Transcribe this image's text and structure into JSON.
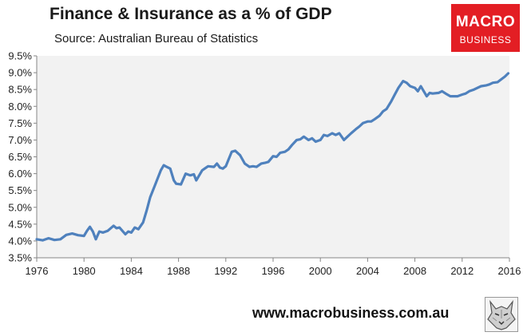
{
  "title": "Finance & Insurance as a % of GDP",
  "subtitle": "Source: Australian Bureau of Statistics",
  "logo": {
    "line1": "MACRO",
    "line2": "BUSINESS",
    "color": "#e31e24"
  },
  "footer": {
    "url": "www.macrobusiness.com.au",
    "icon": "wolf-head-icon"
  },
  "colors": {
    "line": "#4f81bd",
    "plot_bg": "#f2f2f2"
  },
  "chart_data": {
    "type": "line",
    "title": "Finance & Insurance as a % of GDP",
    "xlim": [
      1976,
      2016
    ],
    "ylim": [
      3.5,
      9.5
    ],
    "xticks": [
      1976,
      1980,
      1984,
      1988,
      1992,
      1996,
      2000,
      2004,
      2008,
      2012,
      2016
    ],
    "xtick_labels": [
      "1976",
      "1980",
      "1984",
      "1988",
      "1992",
      "1996",
      "2000",
      "2004",
      "2008",
      "2012",
      "2016"
    ],
    "yticks": [
      3.5,
      4.0,
      4.5,
      5.0,
      5.5,
      6.0,
      6.5,
      7.0,
      7.5,
      8.0,
      8.5,
      9.0,
      9.5
    ],
    "ytick_labels": [
      "3.5%",
      "4.0%",
      "4.5%",
      "5.0%",
      "5.5%",
      "6.0%",
      "6.5%",
      "7.0%",
      "7.5%",
      "8.0%",
      "8.5%",
      "9.0%",
      "9.5%"
    ],
    "grid": false,
    "legend": "none",
    "series": [
      {
        "x": [
          1976.0,
          1976.5,
          1977.0,
          1977.5,
          1978.0,
          1978.5,
          1979.0,
          1979.5,
          1980.0,
          1980.25,
          1980.5,
          1980.75,
          1981.0,
          1981.3,
          1981.6,
          1982.0,
          1982.5,
          1982.75,
          1983.0,
          1983.5,
          1983.75,
          1984.0,
          1984.3,
          1984.6,
          1985.0,
          1985.3,
          1985.6,
          1986.0,
          1986.5,
          1986.75,
          1987.0,
          1987.3,
          1987.6,
          1987.8,
          1988.2,
          1988.6,
          1989.0,
          1989.3,
          1989.5,
          1990.0,
          1990.5,
          1991.0,
          1991.25,
          1991.5,
          1991.75,
          1992.0,
          1992.5,
          1992.8,
          1993.2,
          1993.6,
          1994.0,
          1994.3,
          1994.6,
          1995.0,
          1995.3,
          1995.6,
          1996.0,
          1996.3,
          1996.6,
          1997.0,
          1997.3,
          1997.6,
          1998.0,
          1998.3,
          1998.6,
          1999.0,
          1999.3,
          1999.6,
          2000.0,
          2000.3,
          2000.6,
          2001.0,
          2001.3,
          2001.6,
          2002.0,
          2002.3,
          2002.6,
          2003.0,
          2003.3,
          2003.6,
          2004.0,
          2004.3,
          2004.6,
          2005.0,
          2005.3,
          2005.6,
          2006.0,
          2006.3,
          2006.6,
          2007.0,
          2007.3,
          2007.6,
          2008.0,
          2008.25,
          2008.5,
          2008.75,
          2009.0,
          2009.25,
          2009.5,
          2010.0,
          2010.3,
          2010.6,
          2011.0,
          2011.3,
          2011.6,
          2012.0,
          2012.3,
          2012.6,
          2013.0,
          2013.3,
          2013.6,
          2014.0,
          2014.3,
          2014.6,
          2015.0,
          2015.3,
          2015.6,
          2015.9
        ],
        "y": [
          4.05,
          4.02,
          4.08,
          4.03,
          4.05,
          4.18,
          4.22,
          4.17,
          4.15,
          4.3,
          4.42,
          4.28,
          4.05,
          4.28,
          4.25,
          4.3,
          4.45,
          4.38,
          4.4,
          4.2,
          4.28,
          4.25,
          4.4,
          4.35,
          4.55,
          4.9,
          5.3,
          5.65,
          6.1,
          6.25,
          6.2,
          6.15,
          5.8,
          5.7,
          5.68,
          6.0,
          5.95,
          5.98,
          5.8,
          6.1,
          6.22,
          6.2,
          6.3,
          6.18,
          6.15,
          6.22,
          6.65,
          6.68,
          6.55,
          6.3,
          6.2,
          6.22,
          6.2,
          6.3,
          6.32,
          6.35,
          6.52,
          6.5,
          6.62,
          6.65,
          6.72,
          6.85,
          7.0,
          7.02,
          7.1,
          7.0,
          7.05,
          6.95,
          7.0,
          7.15,
          7.12,
          7.2,
          7.15,
          7.2,
          7.0,
          7.1,
          7.2,
          7.32,
          7.4,
          7.5,
          7.55,
          7.55,
          7.62,
          7.72,
          7.85,
          7.92,
          8.15,
          8.35,
          8.55,
          8.75,
          8.7,
          8.6,
          8.55,
          8.45,
          8.6,
          8.45,
          8.3,
          8.4,
          8.38,
          8.4,
          8.45,
          8.38,
          8.3,
          8.3,
          8.3,
          8.35,
          8.38,
          8.45,
          8.5,
          8.55,
          8.6,
          8.62,
          8.65,
          8.7,
          8.72,
          8.8,
          8.88,
          8.98
        ]
      }
    ]
  }
}
